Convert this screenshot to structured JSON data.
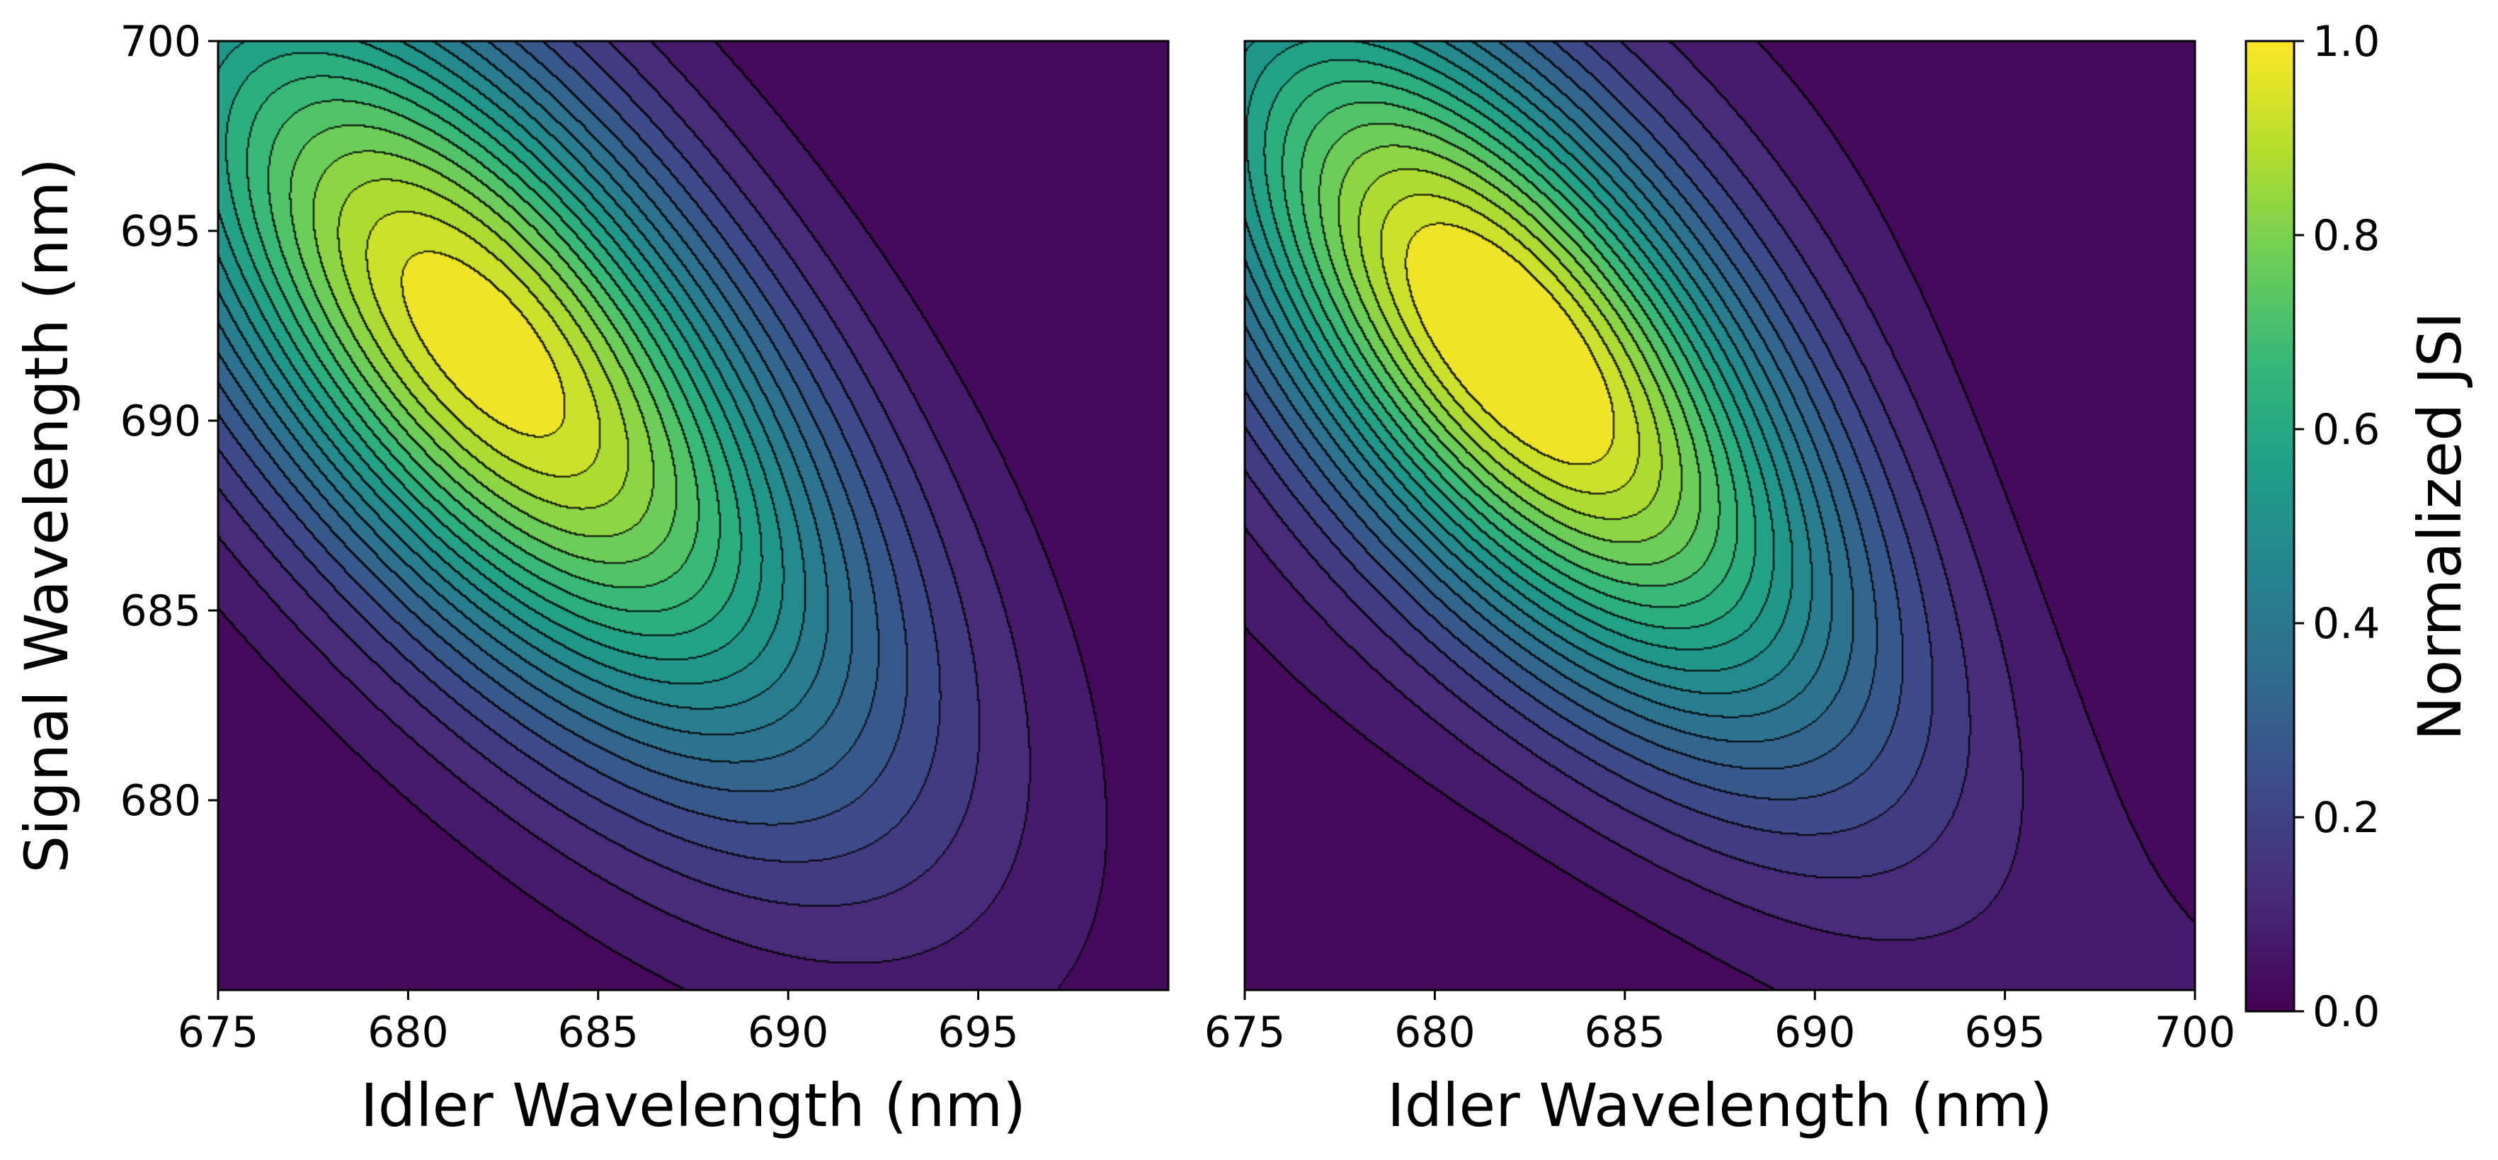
{
  "colors": {
    "colormap": "viridis",
    "contour_line": "#000000",
    "viridis_stops": [
      "#440154",
      "#482878",
      "#3e4989",
      "#31688e",
      "#26828e",
      "#1f9e89",
      "#35b779",
      "#6ece58",
      "#b5de2b",
      "#fde725"
    ]
  },
  "chart_data": [
    {
      "type": "heatmap",
      "name": "left-panel",
      "title": "",
      "xlabel": "Idler Wavelength (nm)",
      "ylabel": "Signal Wavelength (nm)",
      "xlim": [
        675,
        700
      ],
      "ylim": [
        675,
        700
      ],
      "xticks": [
        675,
        680,
        685,
        690,
        695
      ],
      "yticks": [
        680,
        685,
        690,
        695,
        700
      ],
      "peak": {
        "x": 682,
        "y": 692,
        "value": 1.0
      },
      "filled_contour_levels": 20,
      "contour_line_levels": [
        0.05,
        0.1,
        0.15,
        0.2,
        0.25,
        0.3,
        0.35,
        0.4,
        0.45,
        0.5,
        0.55,
        0.6,
        0.65,
        0.7,
        0.75,
        0.8,
        0.85,
        0.9,
        0.95
      ],
      "distribution": {
        "sigma_x": 6.7,
        "sigma_y": 7.6,
        "correlation": -0.68,
        "side_lobes": false
      }
    },
    {
      "type": "heatmap",
      "name": "right-panel",
      "title": "",
      "xlabel": "Idler Wavelength (nm)",
      "ylabel": "",
      "xlim": [
        675,
        700
      ],
      "ylim": [
        675,
        700
      ],
      "xticks": [
        675,
        680,
        685,
        690,
        695,
        700
      ],
      "yticks": [],
      "peak": {
        "x": 682,
        "y": 692,
        "value": 1.0
      },
      "filled_contour_levels": 20,
      "contour_line_levels": [
        0.05,
        0.1,
        0.15,
        0.2,
        0.25,
        0.3,
        0.35,
        0.4,
        0.45,
        0.5,
        0.55,
        0.6,
        0.65,
        0.7,
        0.75,
        0.8,
        0.85,
        0.9,
        0.95
      ],
      "distribution": {
        "sigma_x": 6.2,
        "sigma_y": 7.2,
        "correlation": -0.7,
        "side_lobes": true
      }
    }
  ],
  "colorbar": {
    "label": "Normalized JSI",
    "range": [
      0.0,
      1.0
    ],
    "ticks": [
      "0.0",
      "0.2",
      "0.4",
      "0.6",
      "0.8",
      "1.0"
    ]
  }
}
